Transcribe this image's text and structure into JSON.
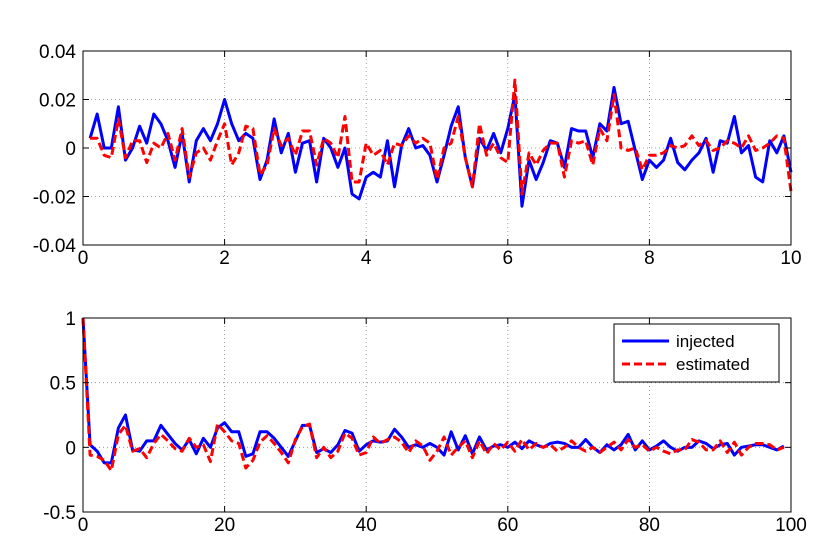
{
  "chart_data": [
    {
      "type": "line",
      "title": "",
      "xlabel": "",
      "ylabel": "",
      "xlim": [
        0,
        10
      ],
      "ylim": [
        -0.04,
        0.04
      ],
      "xticks": [
        0,
        2,
        4,
        6,
        8,
        10
      ],
      "xtick_labels": [
        "0",
        "2",
        "4",
        "6",
        "8",
        "10"
      ],
      "yticks": [
        -0.04,
        -0.02,
        0,
        0.02,
        0.04
      ],
      "ytick_labels": [
        "-0.04",
        "-0.02",
        "0",
        "0.02",
        "0.04"
      ],
      "grid": true,
      "legend": null,
      "series": [
        {
          "color": "#0000ff",
          "style": "solid",
          "x": [
            0.1,
            0.2,
            0.3,
            0.4,
            0.5,
            0.6,
            0.7,
            0.8,
            0.9,
            1.0,
            1.1,
            1.2,
            1.3,
            1.4,
            1.5,
            1.6,
            1.7,
            1.8,
            1.9,
            2.0,
            2.1,
            2.2,
            2.3,
            2.4,
            2.5,
            2.6,
            2.7,
            2.8,
            2.9,
            3.0,
            3.1,
            3.2,
            3.3,
            3.4,
            3.5,
            3.6,
            3.7,
            3.8,
            3.9,
            4.0,
            4.1,
            4.2,
            4.3,
            4.4,
            4.5,
            4.6,
            4.7,
            4.8,
            4.9,
            5.0,
            5.1,
            5.2,
            5.3,
            5.4,
            5.5,
            5.6,
            5.7,
            5.8,
            5.9,
            6.0,
            6.1,
            6.2,
            6.3,
            6.4,
            6.5,
            6.6,
            6.7,
            6.8,
            6.9,
            7.0,
            7.1,
            7.2,
            7.3,
            7.4,
            7.5,
            7.6,
            7.7,
            7.8,
            7.9,
            8.0,
            8.1,
            8.2,
            8.3,
            8.4,
            8.5,
            8.6,
            8.7,
            8.8,
            8.9,
            9.0,
            9.1,
            9.2,
            9.3,
            9.4,
            9.5,
            9.6,
            9.7,
            9.8,
            9.9,
            10.0
          ],
          "y": [
            0.004,
            0.014,
            0.0,
            0.0,
            0.017,
            -0.005,
            0.0,
            0.009,
            0.002,
            0.014,
            0.01,
            0.003,
            -0.008,
            0.006,
            -0.014,
            0.003,
            0.008,
            0.003,
            0.01,
            0.02,
            0.01,
            0.003,
            0.006,
            0.004,
            -0.013,
            -0.005,
            0.012,
            -0.002,
            0.006,
            -0.01,
            0.002,
            0.003,
            -0.014,
            0.004,
            0.0,
            -0.008,
            0.0,
            -0.019,
            -0.021,
            -0.012,
            -0.01,
            -0.012,
            0.003,
            -0.016,
            0.001,
            0.008,
            0.0,
            0.001,
            -0.003,
            -0.014,
            -0.003,
            0.009,
            0.017,
            -0.004,
            -0.016,
            0.004,
            -0.001,
            0.006,
            -0.002,
            0.008,
            0.022,
            -0.024,
            -0.005,
            -0.013,
            -0.006,
            0.003,
            0.002,
            -0.008,
            0.008,
            0.007,
            0.007,
            -0.004,
            0.01,
            0.007,
            0.025,
            0.01,
            0.011,
            -0.001,
            -0.013,
            -0.005,
            -0.008,
            -0.005,
            0.004,
            -0.006,
            -0.009,
            -0.005,
            -0.002,
            0.004,
            -0.01,
            0.003,
            0.002,
            0.013,
            -0.002,
            0.001,
            -0.012,
            -0.014,
            0.003,
            -0.002,
            0.005,
            -0.01
          ]
        },
        {
          "color": "#ff0000",
          "style": "dashed",
          "x": [
            0.1,
            0.2,
            0.3,
            0.4,
            0.5,
            0.6,
            0.7,
            0.8,
            0.9,
            1.0,
            1.1,
            1.2,
            1.3,
            1.4,
            1.5,
            1.6,
            1.7,
            1.8,
            1.9,
            2.0,
            2.1,
            2.2,
            2.3,
            2.4,
            2.5,
            2.6,
            2.7,
            2.8,
            2.9,
            3.0,
            3.1,
            3.2,
            3.3,
            3.4,
            3.5,
            3.6,
            3.7,
            3.8,
            3.9,
            4.0,
            4.1,
            4.2,
            4.3,
            4.4,
            4.5,
            4.6,
            4.7,
            4.8,
            4.9,
            5.0,
            5.1,
            5.2,
            5.3,
            5.4,
            5.5,
            5.6,
            5.7,
            5.8,
            5.9,
            6.0,
            6.1,
            6.2,
            6.3,
            6.4,
            6.5,
            6.6,
            6.7,
            6.8,
            6.9,
            7.0,
            7.1,
            7.2,
            7.3,
            7.4,
            7.5,
            7.6,
            7.7,
            7.8,
            7.9,
            8.0,
            8.1,
            8.2,
            8.3,
            8.4,
            8.5,
            8.6,
            8.7,
            8.8,
            8.9,
            9.0,
            9.1,
            9.2,
            9.3,
            9.4,
            9.5,
            9.6,
            9.7,
            9.8,
            9.9,
            10.0
          ],
          "y": [
            0.004,
            0.004,
            -0.003,
            -0.004,
            0.012,
            -0.004,
            0.003,
            0.003,
            -0.006,
            0.002,
            0.0,
            0.006,
            -0.005,
            0.008,
            -0.012,
            -0.002,
            0.0,
            -0.005,
            0.003,
            0.01,
            -0.007,
            -0.002,
            0.009,
            0.008,
            -0.011,
            -0.007,
            0.008,
            0.001,
            0.004,
            -0.003,
            0.007,
            0.007,
            -0.007,
            0.004,
            0.002,
            -0.004,
            0.013,
            -0.014,
            -0.014,
            0.002,
            -0.003,
            -0.001,
            -0.007,
            0.002,
            0.001,
            0.005,
            0.002,
            0.004,
            0.002,
            -0.013,
            0.0,
            0.002,
            0.013,
            -0.004,
            -0.016,
            0.01,
            -0.003,
            0.002,
            -0.004,
            -0.006,
            0.028,
            -0.019,
            -0.002,
            -0.007,
            -0.001,
            0.002,
            0.002,
            -0.012,
            0.003,
            0.002,
            0.003,
            -0.007,
            0.008,
            0.003,
            0.022,
            0.0,
            -0.001,
            0.0,
            -0.009,
            -0.003,
            -0.003,
            -0.002,
            0.001,
            0.0,
            0.001,
            0.005,
            0.001,
            0.003,
            -0.001,
            0.0,
            0.003,
            0.002,
            0.0,
            0.005,
            -0.001,
            0.0,
            0.002,
            0.005,
            0.004,
            -0.018
          ]
        }
      ]
    },
    {
      "type": "line",
      "title": "",
      "xlabel": "",
      "ylabel": "",
      "xlim": [
        0,
        100
      ],
      "ylim": [
        -0.5,
        1
      ],
      "xticks": [
        0,
        20,
        40,
        60,
        80,
        100
      ],
      "xtick_labels": [
        "0",
        "20",
        "40",
        "60",
        "80",
        "100"
      ],
      "yticks": [
        -0.5,
        0,
        0.5,
        1
      ],
      "ytick_labels": [
        "-0.5",
        "0",
        "0.5",
        "1"
      ],
      "grid": true,
      "legend": "top-right",
      "series": [
        {
          "name": "injected",
          "color": "#0000ff",
          "style": "solid",
          "x": [
            0,
            1,
            2,
            3,
            4,
            5,
            6,
            7,
            8,
            9,
            10,
            11,
            12,
            13,
            14,
            15,
            16,
            17,
            18,
            19,
            20,
            21,
            22,
            23,
            24,
            25,
            26,
            27,
            28,
            29,
            30,
            31,
            32,
            33,
            34,
            35,
            36,
            37,
            38,
            39,
            40,
            41,
            42,
            43,
            44,
            45,
            46,
            47,
            48,
            49,
            50,
            51,
            52,
            53,
            54,
            55,
            56,
            57,
            58,
            59,
            60,
            61,
            62,
            63,
            64,
            65,
            66,
            67,
            68,
            69,
            70,
            71,
            72,
            73,
            74,
            75,
            76,
            77,
            78,
            79,
            80,
            81,
            82,
            83,
            84,
            85,
            86,
            87,
            88,
            89,
            90,
            91,
            92,
            93,
            94,
            95,
            96,
            97,
            98,
            99
          ],
          "y": [
            1.0,
            0.02,
            -0.03,
            -0.12,
            -0.12,
            0.15,
            0.25,
            -0.02,
            -0.03,
            0.05,
            0.05,
            0.17,
            0.1,
            0.03,
            -0.02,
            0.06,
            -0.05,
            0.07,
            0.0,
            0.15,
            0.19,
            0.12,
            0.12,
            -0.07,
            -0.05,
            0.12,
            0.12,
            0.07,
            0.0,
            -0.07,
            0.05,
            0.17,
            0.17,
            -0.04,
            -0.01,
            -0.04,
            0.02,
            0.13,
            0.11,
            -0.03,
            0.02,
            0.05,
            0.04,
            0.05,
            0.14,
            0.08,
            0.0,
            0.02,
            0.0,
            0.03,
            0.0,
            -0.06,
            0.12,
            -0.02,
            0.09,
            -0.05,
            0.08,
            -0.02,
            0.01,
            0.02,
            0.0,
            0.04,
            -0.01,
            0.05,
            0.02,
            0.0,
            0.03,
            0.04,
            0.03,
            0.0,
            0.0,
            0.06,
            0.0,
            -0.04,
            0.02,
            -0.02,
            0.02,
            0.1,
            -0.02,
            0.05,
            -0.02,
            0.01,
            0.05,
            0.0,
            -0.03,
            0.0,
            0.0,
            0.05,
            0.03,
            -0.01,
            0.02,
            0.03,
            -0.06,
            0.0,
            0.01,
            0.02,
            0.02,
            0.0,
            -0.02,
            0.01
          ]
        },
        {
          "name": "estimated",
          "color": "#ff0000",
          "style": "dashed",
          "x": [
            0,
            1,
            2,
            3,
            4,
            5,
            6,
            7,
            8,
            9,
            10,
            11,
            12,
            13,
            14,
            15,
            16,
            17,
            18,
            19,
            20,
            21,
            22,
            23,
            24,
            25,
            26,
            27,
            28,
            29,
            30,
            31,
            32,
            33,
            34,
            35,
            36,
            37,
            38,
            39,
            40,
            41,
            42,
            43,
            44,
            45,
            46,
            47,
            48,
            49,
            50,
            51,
            52,
            53,
            54,
            55,
            56,
            57,
            58,
            59,
            60,
            61,
            62,
            63,
            64,
            65,
            66,
            67,
            68,
            69,
            70,
            71,
            72,
            73,
            74,
            75,
            76,
            77,
            78,
            79,
            80,
            81,
            82,
            83,
            84,
            85,
            86,
            87,
            88,
            89,
            90,
            91,
            92,
            93,
            94,
            95,
            96,
            97,
            98,
            99
          ],
          "y": [
            1.0,
            -0.06,
            -0.07,
            -0.1,
            -0.18,
            0.1,
            0.17,
            -0.03,
            -0.01,
            -0.08,
            0.03,
            0.1,
            0.05,
            -0.01,
            -0.03,
            0.07,
            0.0,
            0.02,
            -0.11,
            0.18,
            0.12,
            0.05,
            0.03,
            -0.16,
            -0.1,
            0.04,
            0.09,
            0.03,
            -0.04,
            -0.12,
            0.06,
            0.16,
            0.18,
            -0.08,
            0.0,
            -0.08,
            -0.03,
            0.11,
            0.07,
            -0.06,
            -0.04,
            0.08,
            0.03,
            0.06,
            0.08,
            0.04,
            -0.04,
            0.05,
            0.01,
            -0.1,
            -0.03,
            0.08,
            -0.06,
            0.0,
            0.05,
            -0.08,
            0.05,
            -0.05,
            0.03,
            -0.02,
            0.04,
            -0.03,
            0.06,
            -0.02,
            0.03,
            0.0,
            0.02,
            -0.03,
            0.0,
            0.05,
            0.0,
            -0.03,
            0.0,
            -0.04,
            0.0,
            0.04,
            -0.02,
            0.06,
            0.0,
            0.02,
            -0.03,
            0.0,
            -0.03,
            -0.05,
            -0.02,
            -0.02,
            0.06,
            0.04,
            -0.02,
            -0.02,
            0.05,
            -0.04,
            0.04,
            -0.06,
            0.0,
            0.03,
            0.03,
            0.02,
            -0.02,
            0.0
          ]
        }
      ]
    }
  ]
}
